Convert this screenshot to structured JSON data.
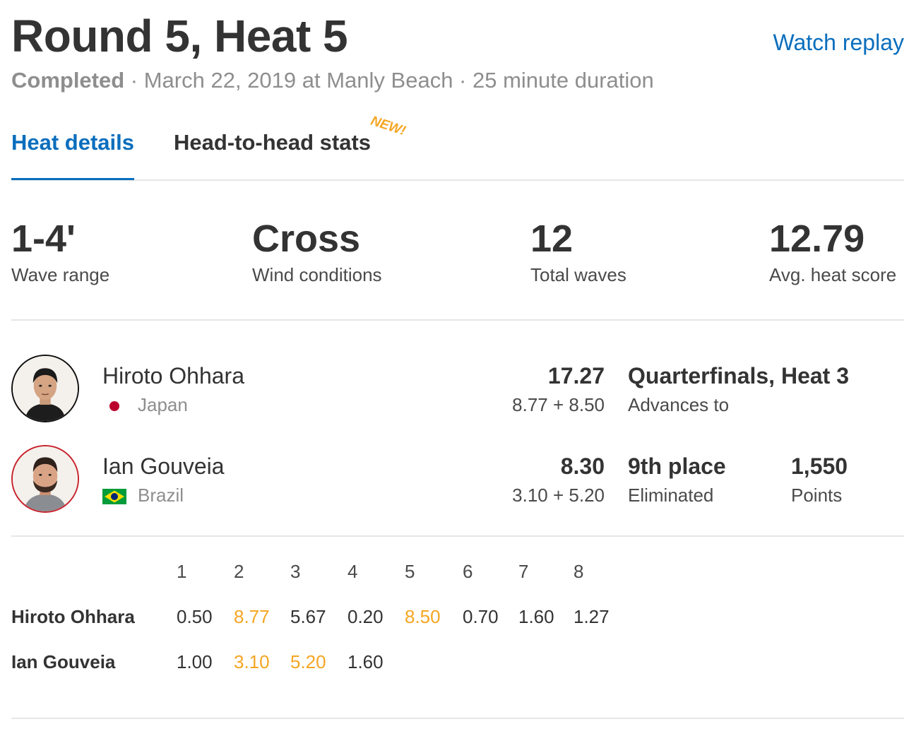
{
  "header": {
    "title": "Round 5, Heat 5",
    "watch_replay": "Watch replay",
    "status": "Completed",
    "details": " · March 22, 2019 at Manly Beach · 25 minute duration"
  },
  "tabs": [
    {
      "label": "Heat details",
      "active": true
    },
    {
      "label": "Head-to-head stats",
      "badge": "NEW!"
    }
  ],
  "stats": [
    {
      "value": "1-4'",
      "label": "Wave range"
    },
    {
      "value": "Cross",
      "label": "Wind conditions"
    },
    {
      "value": "12",
      "label": "Total waves"
    },
    {
      "value": "12.79",
      "label": "Avg. heat score"
    }
  ],
  "surfers": [
    {
      "name": "Hiroto Ohhara",
      "country": "Japan",
      "flag": "japan-flag-icon",
      "score": "17.27",
      "waves": "8.77 + 8.50",
      "result": "Quarterfinals, Heat 3",
      "result_label": "Advances to"
    },
    {
      "name": "Ian Gouveia",
      "country": "Brazil",
      "flag": "brazil-flag-icon",
      "score": "8.30",
      "waves": "3.10 + 5.20",
      "result": "9th place",
      "result_label": "Eliminated",
      "points": "1,550",
      "points_label": "Points"
    }
  ],
  "wave_table": {
    "columns": [
      "1",
      "2",
      "3",
      "4",
      "5",
      "6",
      "7",
      "8"
    ],
    "rows": [
      {
        "name": "Hiroto Ohhara",
        "scores": [
          "0.50",
          "8.77",
          "5.67",
          "0.20",
          "8.50",
          "0.70",
          "1.60",
          "1.27"
        ],
        "counting": [
          1,
          4
        ]
      },
      {
        "name": "Ian Gouveia",
        "scores": [
          "1.00",
          "3.10",
          "5.20",
          "1.60"
        ],
        "counting": [
          1,
          2
        ]
      }
    ]
  },
  "colors": {
    "accent": "#0a6ebd",
    "highlight": "#f5a623",
    "eliminated_ring": "#c8232c"
  }
}
